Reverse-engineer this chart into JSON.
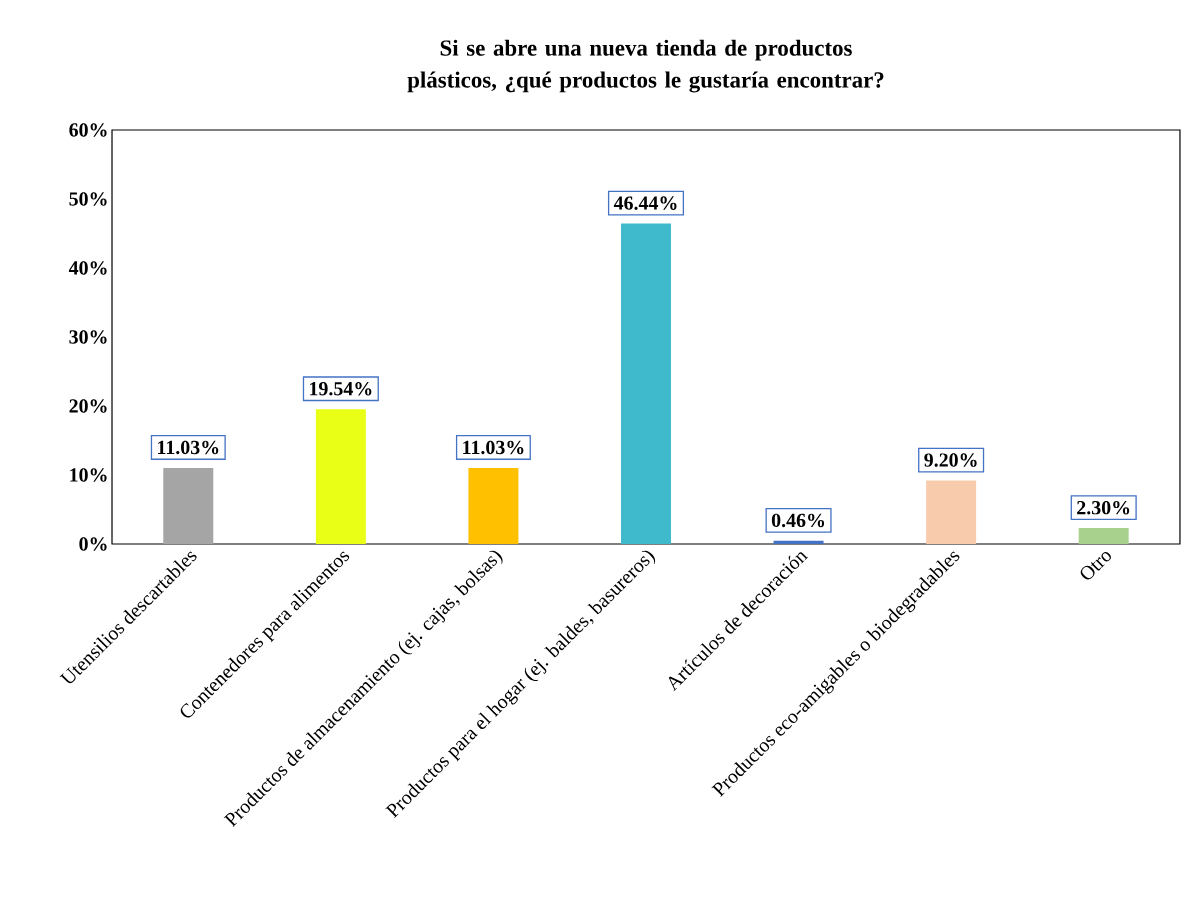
{
  "chart_data": {
    "type": "bar",
    "title": "Si se abre una nueva tienda de productos plásticos, ¿qué productos le gustaría encontrar?",
    "categories": [
      "Utensilios descartables",
      "Contenedores para alimentos",
      "Productos de almacenamiento (ej. cajas, bolsas)",
      "Productos para el hogar (ej. baldes, basureros)",
      "Artículos de decoración",
      "Productos eco-amigables o biodegradables",
      "Otro"
    ],
    "values": [
      11.03,
      19.54,
      11.03,
      46.44,
      0.46,
      9.2,
      2.3
    ],
    "value_labels": [
      "11.03%",
      "19.54%",
      "11.03%",
      "46.44%",
      "0.46%",
      "9.20%",
      "2.30%"
    ],
    "colors": [
      "#a5a5a5",
      "#eaff16",
      "#ffc000",
      "#3fbacc",
      "#4472c4",
      "#f8cbad",
      "#a9d18e"
    ],
    "ylim": [
      0,
      60
    ],
    "yticks": [
      {
        "value": 0,
        "label": "0%"
      },
      {
        "value": 10,
        "label": "10%"
      },
      {
        "value": 20,
        "label": "20%"
      },
      {
        "value": 30,
        "label": "30%"
      },
      {
        "value": 40,
        "label": "40%"
      },
      {
        "value": 50,
        "label": "50%"
      },
      {
        "value": 60,
        "label": "60%"
      }
    ]
  }
}
